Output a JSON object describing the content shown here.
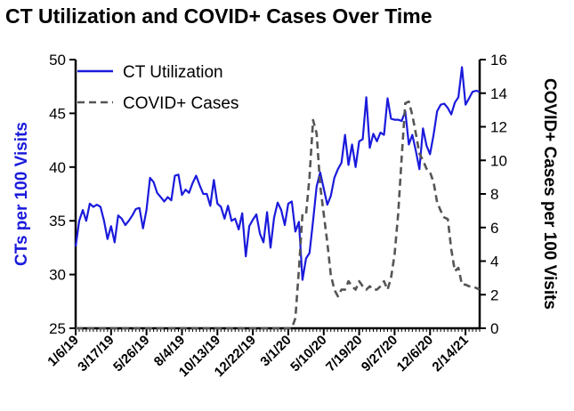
{
  "chart_data": {
    "type": "line",
    "title": "CT Utilization and COVID+ Cases Over Time",
    "xlabel": "",
    "ylabel_left": "CTs per 100 Visits",
    "ylabel_right": "COVID+ Cases per 100 Visits",
    "ylim_left": [
      25,
      50
    ],
    "ylim_right": [
      0,
      16
    ],
    "yticks_left": [
      "25",
      "30",
      "35",
      "40",
      "45",
      "50"
    ],
    "yticks_right": [
      "0",
      "2",
      "4",
      "6",
      "8",
      "10",
      "12",
      "14",
      "16"
    ],
    "xticks": [
      "1/6/19",
      "3/17/19",
      "5/26/19",
      "8/4/19",
      "10/13/19",
      "12/22/19",
      "3/1/20",
      "5/10/20",
      "7/19/20",
      "9/27/20",
      "12/6/20",
      "2/14/21"
    ],
    "legend": {
      "position": "top-left",
      "entries": [
        "CT Utilization",
        "COVID+ Cases"
      ]
    },
    "colors": {
      "ct": "#1a1adc",
      "covid": "#555555"
    },
    "series": [
      {
        "name": "CT Utilization",
        "axis": "left",
        "style": "solid",
        "week_index": [
          0,
          1,
          2,
          3,
          4,
          5,
          6,
          7,
          8,
          9,
          10,
          11,
          12,
          13,
          14,
          15,
          16,
          17,
          18,
          19,
          20,
          21,
          22,
          23,
          24,
          25,
          26,
          27,
          28,
          29,
          30,
          31,
          32,
          33,
          34,
          35,
          36,
          37,
          38,
          39,
          40,
          41,
          42,
          43,
          44,
          45,
          46,
          47,
          48,
          49,
          50,
          51,
          52,
          53,
          54,
          55,
          56,
          57,
          58,
          59,
          60,
          61,
          62,
          63,
          64,
          65,
          66,
          67,
          68,
          69,
          70,
          71,
          72,
          73,
          74,
          75,
          76,
          77,
          78,
          79,
          80,
          81,
          82,
          83,
          84,
          85,
          86,
          87,
          88,
          89,
          90,
          91,
          92,
          93,
          94,
          95,
          96,
          97,
          98,
          99,
          100,
          101,
          102,
          103,
          104,
          105,
          106,
          107,
          108,
          109,
          110,
          111,
          112,
          113,
          114
        ],
        "values": [
          32.6,
          35.0,
          36.0,
          35.0,
          36.6,
          36.3,
          36.5,
          36.3,
          35.0,
          33.3,
          34.5,
          33.0,
          35.5,
          35.2,
          34.6,
          35.0,
          35.5,
          36.1,
          36.2,
          34.3,
          36.0,
          39.0,
          38.6,
          37.6,
          37.2,
          36.8,
          37.2,
          36.9,
          39.2,
          39.3,
          37.4,
          37.9,
          37.6,
          38.5,
          39.2,
          38.3,
          37.5,
          37.5,
          36.4,
          38.8,
          36.6,
          36.3,
          35.2,
          36.4,
          35.0,
          35.2,
          34.2,
          35.7,
          31.7,
          34.5,
          35.1,
          35.6,
          33.8,
          33.0,
          35.8,
          32.5,
          35.3,
          36.7,
          36.0,
          34.6,
          36.6,
          36.8,
          34.0,
          34.9,
          29.5,
          31.5,
          32.0,
          35.0,
          38.2,
          39.5,
          38.0,
          36.5,
          37.3,
          39.0,
          39.8,
          40.4,
          43.0,
          40.2,
          42.1,
          40.0,
          42.4,
          42.6,
          46.5,
          41.8,
          43.1,
          42.4,
          43.2,
          43.0,
          46.4,
          44.5,
          44.4,
          44.4,
          44.3,
          45.2,
          42.1,
          43.0,
          41.5,
          39.8,
          43.6,
          42.0,
          41.2,
          43.0,
          45.2,
          45.8,
          45.9,
          45.5,
          44.9,
          46.0,
          46.5,
          49.3,
          45.8,
          46.4,
          47.0,
          47.1,
          47.0
        ]
      },
      {
        "name": "COVID+ Cases",
        "axis": "right",
        "style": "dashed",
        "week_index": [
          0,
          61,
          62,
          63,
          64,
          65,
          66,
          67,
          68,
          69,
          70,
          71,
          72,
          73,
          74,
          75,
          76,
          77,
          78,
          79,
          80,
          81,
          82,
          83,
          84,
          85,
          86,
          87,
          88,
          89,
          90,
          91,
          92,
          93,
          94,
          95,
          96,
          97,
          98,
          99,
          100,
          101,
          102,
          103,
          104,
          105,
          106,
          107,
          108,
          109,
          110,
          111,
          112,
          113,
          114
        ],
        "values": [
          0,
          0,
          0.6,
          3.5,
          6.8,
          6.8,
          9.0,
          12.4,
          11.6,
          8.5,
          6.8,
          5.1,
          3.2,
          2.3,
          1.9,
          2.3,
          2.3,
          2.8,
          2.5,
          2.3,
          2.8,
          2.5,
          2.3,
          2.5,
          2.3,
          2.3,
          2.5,
          2.8,
          2.3,
          3.0,
          4.4,
          6.8,
          10.2,
          13.4,
          13.5,
          12.7,
          11.6,
          10.4,
          10.0,
          9.5,
          9.3,
          8.7,
          7.5,
          7.0,
          6.6,
          6.5,
          4.7,
          3.4,
          3.6,
          2.6,
          2.6,
          2.5,
          2.5,
          2.4,
          2.3
        ]
      }
    ]
  }
}
